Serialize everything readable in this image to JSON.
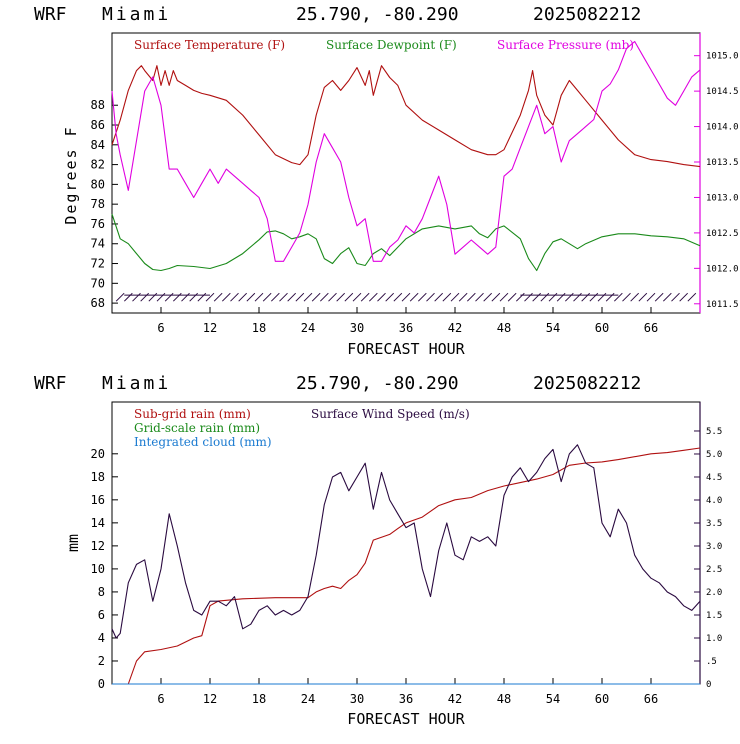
{
  "panel_top": {
    "header": {
      "model": "WRF",
      "location": "Miami",
      "coords": "25.790, -80.290",
      "run": "2025082212"
    },
    "legend": [
      {
        "label": "Surface Temperature (F)",
        "color": "#b01010"
      },
      {
        "label": "Surface Dewpoint (F)",
        "color": "#1a8a1a"
      },
      {
        "label": "Surface Pressure (mb)",
        "color": "#e000e0"
      }
    ]
  },
  "panel_bottom": {
    "header": {
      "model": "WRF",
      "location": "Miami",
      "coords": "25.790, -80.290",
      "run": "2025082212"
    },
    "legend": [
      {
        "label": "Sub-grid rain (mm)",
        "color": "#b01010"
      },
      {
        "label": "Surface Wind Speed (m/s)",
        "color": "#2a0a40"
      },
      {
        "label": "Grid-scale rain (mm)",
        "color": "#1a8a1a"
      },
      {
        "label": "Integrated cloud (mm)",
        "color": "#1a7ad0"
      }
    ]
  },
  "chart_data": [
    {
      "type": "line",
      "xlabel": "FORECAST HOUR",
      "ylabel": "Degrees F",
      "xlim": [
        0,
        72
      ],
      "x_ticks": [
        6,
        12,
        18,
        24,
        30,
        36,
        42,
        48,
        54,
        60,
        66
      ],
      "x_tick_labels": [
        "6",
        "12",
        "18",
        "24",
        "30",
        "36",
        "42",
        "48",
        "54",
        "60",
        "66"
      ],
      "ylim": [
        67,
        95.3
      ],
      "y_ticks": [
        68,
        70,
        72,
        74,
        76,
        78,
        80,
        82,
        84,
        86,
        88
      ],
      "y_tick_labels": [
        "68",
        "70",
        "72",
        "74",
        "76",
        "78",
        "80",
        "82",
        "84",
        "86",
        "88"
      ],
      "y2label": "",
      "y2lim": [
        1011.37,
        1015.32
      ],
      "y2_ticks": [
        1011.5,
        1012.0,
        1012.5,
        1013.0,
        1013.5,
        1014.0,
        1014.5,
        1015.0
      ],
      "y2_tick_labels": [
        "1011.5",
        "1012.0",
        "1012.5",
        "1013.0",
        "1013.5",
        "1014.0",
        "1014.5",
        "1015.0"
      ],
      "series": [
        {
          "name": "Surface Temperature (F)",
          "axis": "left",
          "color": "#b01010",
          "x": [
            0,
            1,
            2,
            3,
            3.6,
            4,
            5,
            5.5,
            6,
            6.5,
            7,
            7.5,
            8,
            9,
            10,
            11,
            12,
            14,
            16,
            18,
            20,
            22,
            23,
            24,
            25,
            26,
            27,
            28,
            29,
            30,
            31,
            31.5,
            32,
            33,
            34,
            35,
            36,
            38,
            40,
            42,
            44,
            46,
            47,
            48,
            50,
            51,
            51.5,
            52,
            53,
            54,
            55,
            56,
            57,
            58,
            60,
            62,
            64,
            66,
            68,
            70,
            72
          ],
          "y": [
            84,
            86.5,
            89.5,
            91.5,
            92,
            91.5,
            90.5,
            92,
            90,
            91.5,
            90,
            91.5,
            90.5,
            90,
            89.5,
            89.2,
            89,
            88.5,
            87,
            85,
            83,
            82.2,
            82,
            83,
            87,
            89.8,
            90.5,
            89.5,
            90.5,
            91.8,
            90,
            91.5,
            89,
            92,
            90.8,
            90,
            88,
            86.5,
            85.5,
            84.5,
            83.5,
            83,
            83,
            83.5,
            87,
            89.5,
            91.5,
            89,
            87,
            86,
            89,
            90.5,
            89.5,
            88.5,
            86.5,
            84.5,
            83,
            82.5,
            82.3,
            82,
            81.8
          ]
        },
        {
          "name": "Surface Dewpoint (F)",
          "axis": "left",
          "color": "#1a8a1a",
          "x": [
            0,
            1,
            2,
            3,
            4,
            5,
            6,
            7,
            8,
            10,
            12,
            14,
            16,
            18,
            19,
            20,
            21,
            22,
            23,
            24,
            25,
            26,
            27,
            28,
            29,
            30,
            31,
            32,
            33,
            34,
            36,
            38,
            40,
            42,
            44,
            45,
            46,
            47,
            48,
            50,
            51,
            52,
            53,
            54,
            55,
            56,
            57,
            58,
            60,
            62,
            64,
            66,
            68,
            70,
            72
          ],
          "y": [
            77,
            74.5,
            74,
            73,
            72,
            71.4,
            71.3,
            71.5,
            71.8,
            71.7,
            71.5,
            72,
            73,
            74.4,
            75.2,
            75.3,
            75,
            74.5,
            74.7,
            75,
            74.5,
            72.5,
            72,
            73,
            73.6,
            72,
            71.8,
            73,
            73.5,
            72.8,
            74.5,
            75.5,
            75.8,
            75.5,
            75.8,
            75,
            74.6,
            75.5,
            75.8,
            74.5,
            72.5,
            71.3,
            73,
            74.2,
            74.5,
            74,
            73.5,
            74,
            74.7,
            75,
            75,
            74.8,
            74.7,
            74.5,
            73.8
          ]
        },
        {
          "name": "Surface Pressure (mb)",
          "axis": "right",
          "color": "#e000e0",
          "x": [
            0,
            0.5,
            1,
            2,
            3,
            4,
            5,
            6,
            7,
            8,
            9,
            10,
            11,
            12,
            13,
            14,
            15,
            16,
            17,
            18,
            19,
            20,
            21,
            22,
            23,
            24,
            25,
            26,
            27,
            28,
            29,
            30,
            31,
            32,
            33,
            34,
            35,
            36,
            37,
            38,
            39,
            40,
            41,
            42,
            43,
            44,
            45,
            46,
            47,
            48,
            49,
            50,
            51,
            52,
            53,
            54,
            55,
            56,
            57,
            58,
            59,
            60,
            61,
            62,
            63,
            64,
            65,
            66,
            67,
            68,
            69,
            70,
            71,
            72
          ],
          "y": [
            1014.5,
            1013.9,
            1013.6,
            1013.1,
            1013.8,
            1014.5,
            1014.7,
            1014.3,
            1013.4,
            1013.4,
            1013.2,
            1013.0,
            1013.2,
            1013.4,
            1013.2,
            1013.4,
            1013.3,
            1013.2,
            1013.1,
            1013.0,
            1012.7,
            1012.1,
            1012.1,
            1012.3,
            1012.5,
            1012.9,
            1013.5,
            1013.9,
            1013.7,
            1013.5,
            1013.0,
            1012.6,
            1012.7,
            1012.1,
            1012.1,
            1012.3,
            1012.4,
            1012.6,
            1012.5,
            1012.7,
            1013.0,
            1013.3,
            1012.9,
            1012.2,
            1012.3,
            1012.4,
            1012.3,
            1012.2,
            1012.3,
            1013.3,
            1013.4,
            1013.7,
            1014.0,
            1014.3,
            1013.9,
            1014.0,
            1013.5,
            1013.8,
            1013.9,
            1014.0,
            1014.1,
            1014.5,
            1014.6,
            1014.8,
            1015.1,
            1015.2,
            1015.0,
            1014.8,
            1014.6,
            1014.4,
            1014.3,
            1014.5,
            1014.7,
            1014.8
          ]
        }
      ],
      "wind_barbs_y": 68.7
    },
    {
      "type": "line",
      "xlabel": "FORECAST HOUR",
      "ylabel": "mm",
      "xlim": [
        0,
        72
      ],
      "x_ticks": [
        6,
        12,
        18,
        24,
        30,
        36,
        42,
        48,
        54,
        60,
        66
      ],
      "x_tick_labels": [
        "6",
        "12",
        "18",
        "24",
        "30",
        "36",
        "42",
        "48",
        "54",
        "60",
        "66"
      ],
      "ylim": [
        0,
        24.5
      ],
      "y_ticks": [
        0,
        2,
        4,
        6,
        8,
        10,
        12,
        14,
        16,
        18,
        20
      ],
      "y_tick_labels": [
        "0",
        "2",
        "4",
        "6",
        "8",
        "10",
        "12",
        "14",
        "16",
        "18",
        "20"
      ],
      "y2lim": [
        0,
        6.13
      ],
      "y2_ticks": [
        0,
        0.5,
        1.0,
        1.5,
        2.0,
        2.5,
        3.0,
        3.5,
        4.0,
        4.5,
        5.0,
        5.5
      ],
      "y2_tick_labels": [
        "0",
        ".5",
        "1.0",
        "1.5",
        "2.0",
        "2.5",
        "3.0",
        "3.5",
        "4.0",
        "4.5",
        "5.0",
        "5.5"
      ],
      "series": [
        {
          "name": "Sub-grid rain (mm)",
          "axis": "left",
          "color": "#b01010",
          "x": [
            2,
            3,
            4,
            6,
            8,
            10,
            11,
            12,
            13,
            16,
            20,
            24,
            25,
            26,
            27,
            28,
            29,
            30,
            31,
            32,
            34,
            35,
            36,
            38,
            40,
            42,
            44,
            46,
            48,
            50,
            52,
            54,
            56,
            58,
            60,
            62,
            66,
            68,
            70,
            72
          ],
          "y": [
            0,
            2,
            2.8,
            3,
            3.3,
            4,
            4.2,
            6.8,
            7.2,
            7.4,
            7.5,
            7.5,
            8,
            8.3,
            8.5,
            8.3,
            9,
            9.5,
            10.5,
            12.5,
            13,
            13.5,
            14,
            14.5,
            15.5,
            16,
            16.2,
            16.8,
            17.2,
            17.5,
            17.8,
            18.2,
            19,
            19.2,
            19.3,
            19.5,
            20,
            20.1,
            20.3,
            20.5
          ]
        },
        {
          "name": "Surface Wind Speed (m/s)",
          "axis": "right",
          "color": "#2a0a40",
          "x": [
            0,
            0.5,
            1,
            2,
            3,
            4,
            5,
            6,
            7,
            8,
            9,
            10,
            11,
            12,
            13,
            14,
            15,
            16,
            17,
            18,
            19,
            20,
            21,
            22,
            23,
            24,
            25,
            26,
            27,
            28,
            29,
            30,
            31,
            32,
            33,
            34,
            35,
            36,
            37,
            38,
            39,
            40,
            41,
            42,
            43,
            44,
            45,
            46,
            47,
            48,
            49,
            50,
            51,
            52,
            53,
            54,
            55,
            56,
            57,
            58,
            59,
            60,
            61,
            62,
            63,
            64,
            65,
            66,
            67,
            68,
            69,
            70,
            71,
            72
          ],
          "y": [
            1.2,
            1.0,
            1.1,
            2.2,
            2.6,
            2.7,
            1.8,
            2.5,
            3.7,
            3.0,
            2.2,
            1.6,
            1.5,
            1.8,
            1.8,
            1.7,
            1.9,
            1.2,
            1.3,
            1.6,
            1.7,
            1.5,
            1.6,
            1.5,
            1.6,
            1.9,
            2.8,
            3.9,
            4.5,
            4.6,
            4.2,
            4.5,
            4.8,
            3.8,
            4.6,
            4.0,
            3.7,
            3.4,
            3.5,
            2.5,
            1.9,
            2.9,
            3.5,
            2.8,
            2.7,
            3.2,
            3.1,
            3.2,
            3.0,
            4.1,
            4.5,
            4.7,
            4.4,
            4.6,
            4.9,
            5.1,
            4.4,
            5.0,
            5.2,
            4.8,
            4.7,
            3.5,
            3.2,
            3.8,
            3.5,
            2.8,
            2.5,
            2.3,
            2.2,
            2.0,
            1.9,
            1.7,
            1.6,
            1.8
          ]
        },
        {
          "name": "Grid-scale rain (mm)",
          "axis": "left",
          "color": "#1a8a1a",
          "x": [
            0,
            72
          ],
          "y": [
            0,
            0
          ]
        },
        {
          "name": "Integrated cloud (mm)",
          "axis": "left",
          "color": "#1a7ad0",
          "x": [
            0,
            72
          ],
          "y": [
            0,
            0
          ]
        }
      ]
    }
  ]
}
